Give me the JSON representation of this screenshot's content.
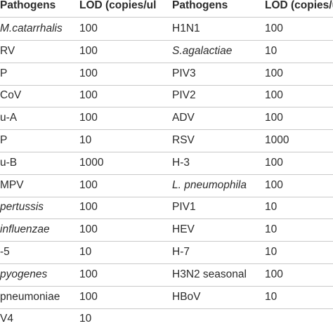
{
  "headers": {
    "pathogens_1": "Pathogens",
    "lod_1": "LOD (copies/ul",
    "pathogens_2": "Pathogens",
    "lod_2": "LOD (copies/ul"
  },
  "rows": [
    {
      "p1": "M.catarrhalis",
      "p1_italic": true,
      "l1": "100",
      "p2": "H1N1",
      "p2_italic": false,
      "l2": "100"
    },
    {
      "p1": "RV",
      "p1_italic": false,
      "l1": "100",
      "p2": "S.agalactiae",
      "p2_italic": true,
      "l2": "10"
    },
    {
      "p1": "P",
      "p1_italic": false,
      "l1": "100",
      "p2": "PIV3",
      "p2_italic": false,
      "l2": "100"
    },
    {
      "p1": "CoV",
      "p1_italic": false,
      "l1": "100",
      "p2": "PIV2",
      "p2_italic": false,
      "l2": "100"
    },
    {
      "p1": "u-A",
      "p1_italic": false,
      "l1": "100",
      "p2": "ADV",
      "p2_italic": false,
      "l2": "100"
    },
    {
      "p1": "P",
      "p1_italic": false,
      "l1": "10",
      "p2": "RSV",
      "p2_italic": false,
      "l2": "1000"
    },
    {
      "p1": "u-B",
      "p1_italic": false,
      "l1": "1000",
      "p2": "H-3",
      "p2_italic": false,
      "l2": "100"
    },
    {
      "p1": "MPV",
      "p1_italic": false,
      "l1": "100",
      "p2": "L. pneumophila",
      "p2_italic": true,
      "l2": "100"
    },
    {
      "p1": "pertussis",
      "p1_italic": true,
      "l1": "100",
      "p2": "PIV1",
      "p2_italic": false,
      "l2": "10"
    },
    {
      "p1": "influenzae",
      "p1_italic": true,
      "l1": "100",
      "p2": "HEV",
      "p2_italic": false,
      "l2": "10"
    },
    {
      "p1": "-5",
      "p1_italic": false,
      "l1": "10",
      "p2": "H-7",
      "p2_italic": false,
      "l2": "10"
    },
    {
      "p1": "pyogenes",
      "p1_italic": true,
      "l1": "100",
      "p2": "H3N2 seasonal",
      "p2_italic": false,
      "l2": "100"
    },
    {
      "p1": "pneumoniae",
      "p1_italic": false,
      "l1": "100",
      "p2": "HBoV",
      "p2_italic": false,
      "l2": "10"
    },
    {
      "p1": "V4",
      "p1_italic": false,
      "l1": "10",
      "p2": "",
      "p2_italic": false,
      "l2": ""
    }
  ]
}
